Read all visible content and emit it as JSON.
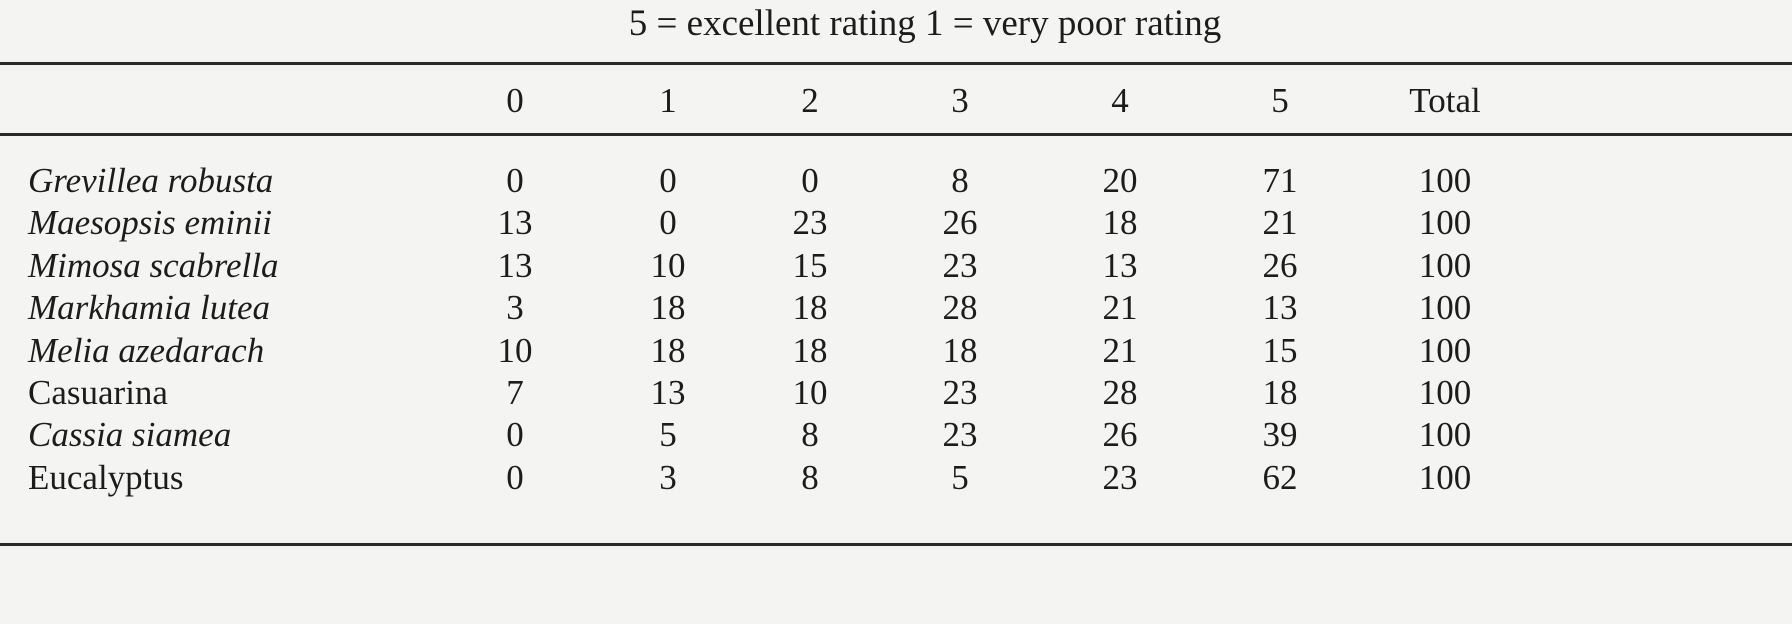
{
  "caption": "5 = excellent rating  1 = very poor rating",
  "columns": [
    "0",
    "1",
    "2",
    "3",
    "4",
    "5",
    "Total"
  ],
  "rows": [
    {
      "species": "Grevillea robusta",
      "italic": true,
      "values": [
        "0",
        "0",
        "0",
        "8",
        "20",
        "71",
        "100"
      ]
    },
    {
      "species": "Maesopsis eminii",
      "italic": true,
      "values": [
        "13",
        "0",
        "23",
        "26",
        "18",
        "21",
        "100"
      ]
    },
    {
      "species": "Mimosa scabrella",
      "italic": true,
      "values": [
        "13",
        "10",
        "15",
        "23",
        "13",
        "26",
        "100"
      ]
    },
    {
      "species": "Markhamia lutea",
      "italic": true,
      "values": [
        "3",
        "18",
        "18",
        "28",
        "21",
        "13",
        "100"
      ]
    },
    {
      "species": "Melia azedarach",
      "italic": true,
      "values": [
        "10",
        "18",
        "18",
        "18",
        "21",
        "15",
        "100"
      ]
    },
    {
      "species": "Casuarina",
      "italic": false,
      "values": [
        "7",
        "13",
        "10",
        "23",
        "28",
        "18",
        "100"
      ]
    },
    {
      "species": "Cassia siamea",
      "italic": true,
      "values": [
        "0",
        "5",
        "8",
        "23",
        "26",
        "39",
        "100"
      ]
    },
    {
      "species": "Eucalyptus",
      "italic": false,
      "values": [
        "0",
        "3",
        "8",
        "5",
        "23",
        "62",
        "100"
      ]
    }
  ]
}
